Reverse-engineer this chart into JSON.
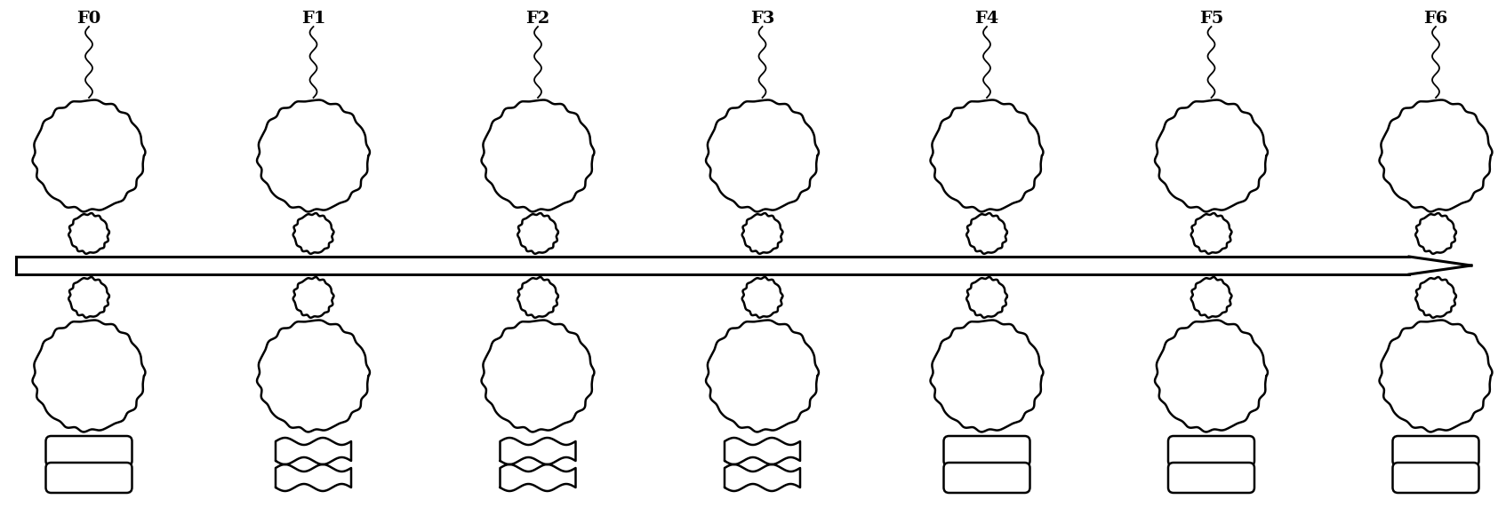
{
  "labels": [
    "F0",
    "F1",
    "F2",
    "F3",
    "F4",
    "F5",
    "F6"
  ],
  "n_stands": 7,
  "background_color": "#ffffff",
  "line_color": "#000000",
  "waviness": [
    0,
    1,
    1,
    1,
    0,
    0,
    0
  ],
  "label_fontsize": 14
}
